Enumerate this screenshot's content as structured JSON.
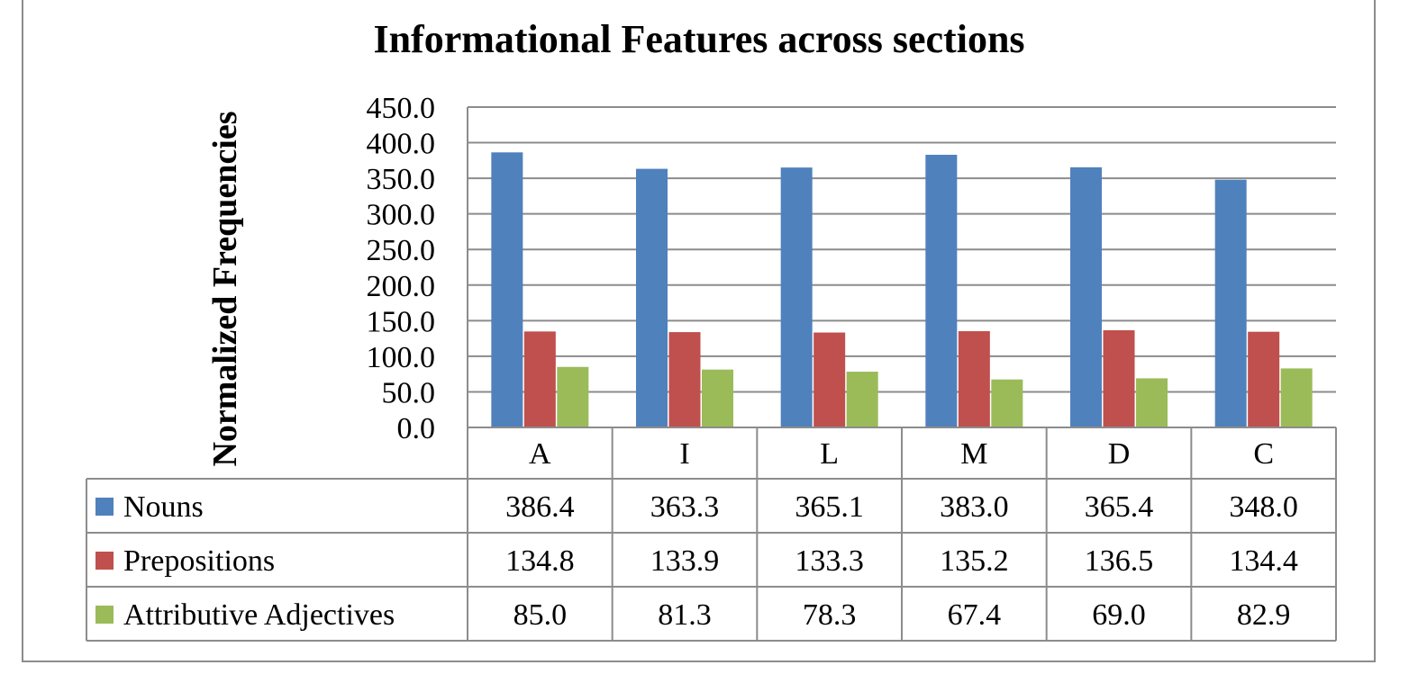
{
  "chart_data": {
    "type": "bar",
    "title": "Informational Features across sections",
    "ylabel": "Normalized Frequencies",
    "xlabel": "",
    "categories": [
      "A",
      "I",
      "L",
      "M",
      "D",
      "C"
    ],
    "ylim": [
      0,
      450
    ],
    "yticks": [
      0,
      50,
      100,
      150,
      200,
      250,
      300,
      350,
      400,
      450
    ],
    "ytick_labels": [
      "0.0",
      "50.0",
      "100.0",
      "150.0",
      "200.0",
      "250.0",
      "300.0",
      "350.0",
      "400.0",
      "450.0"
    ],
    "grid": true,
    "legend_placement": "data table",
    "series": [
      {
        "name": "Nouns",
        "color": "#4F81BD",
        "values": [
          386.4,
          363.3,
          365.1,
          383.0,
          365.4,
          348.0
        ],
        "labels": [
          "386.4",
          "363.3",
          "365.1",
          "383.0",
          "365.4",
          "348.0"
        ]
      },
      {
        "name": "Prepositions",
        "color": "#C0504D",
        "values": [
          134.8,
          133.9,
          133.3,
          135.2,
          136.5,
          134.4
        ],
        "labels": [
          "134.8",
          "133.9",
          "133.3",
          "135.2",
          "136.5",
          "134.4"
        ]
      },
      {
        "name": "Attributive Adjectives",
        "color": "#9BBB59",
        "values": [
          85.0,
          81.3,
          78.3,
          67.4,
          69.0,
          82.9
        ],
        "labels": [
          "85.0",
          "81.3",
          "78.3",
          "67.4",
          "69.0",
          "82.9"
        ]
      }
    ]
  }
}
